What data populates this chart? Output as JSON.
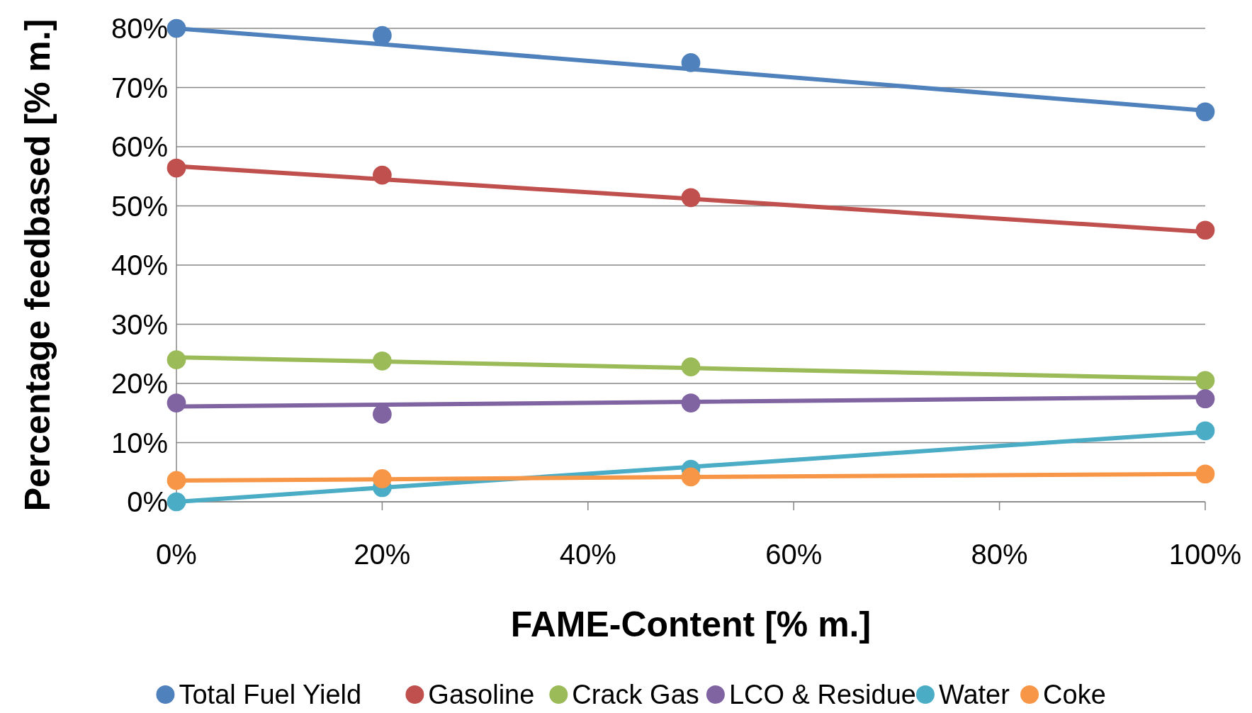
{
  "chart_data": {
    "type": "scatter",
    "xlabel": "FAME-Content [% m.]",
    "ylabel": "Percentage feedbased [% m.]",
    "xlim": [
      0,
      100
    ],
    "ylim": [
      0,
      80
    ],
    "xticks": [
      {
        "value": 0,
        "label": "0%"
      },
      {
        "value": 20,
        "label": "20%"
      },
      {
        "value": 40,
        "label": "40%"
      },
      {
        "value": 60,
        "label": "60%"
      },
      {
        "value": 80,
        "label": "80%"
      },
      {
        "value": 100,
        "label": "100%"
      }
    ],
    "yticks": [
      {
        "value": 0,
        "label": "0%"
      },
      {
        "value": 10,
        "label": "10%"
      },
      {
        "value": 20,
        "label": "20%"
      },
      {
        "value": 30,
        "label": "30%"
      },
      {
        "value": 40,
        "label": "40%"
      },
      {
        "value": 50,
        "label": "50%"
      },
      {
        "value": 60,
        "label": "60%"
      },
      {
        "value": 70,
        "label": "70%"
      },
      {
        "value": 80,
        "label": "80%"
      }
    ],
    "grid": "y",
    "legend": "bottom",
    "marker": "circle",
    "x": [
      0,
      20,
      50,
      100
    ],
    "series": [
      {
        "name": "Total Fuel Yield",
        "color": "#4f81bd",
        "values": [
          80.0,
          78.8,
          74.2,
          65.9
        ]
      },
      {
        "name": "Gasoline",
        "color": "#c0504d",
        "values": [
          56.4,
          55.2,
          51.4,
          45.9
        ]
      },
      {
        "name": "Crack Gas",
        "color": "#9bbb59",
        "values": [
          24.0,
          23.8,
          22.8,
          20.5
        ]
      },
      {
        "name": "LCO & Residue",
        "color": "#8064a2",
        "values": [
          16.7,
          14.8,
          16.7,
          17.4
        ]
      },
      {
        "name": "Water",
        "color": "#4bacc6",
        "values": [
          0.0,
          2.4,
          5.5,
          12.0
        ]
      },
      {
        "name": "Coke",
        "color": "#f79646",
        "values": [
          3.6,
          3.9,
          4.2,
          4.7
        ]
      },
      {
        "type": "line",
        "marker": "none",
        "color": "#4f81bd",
        "values": [
          80.0,
          77.3,
          73.1,
          66.1
        ]
      },
      {
        "type": "line",
        "marker": "none",
        "color": "#c0504d",
        "values": [
          56.7,
          54.5,
          51.2,
          45.6
        ]
      },
      {
        "type": "line",
        "marker": "none",
        "color": "#9bbb59",
        "values": [
          24.4,
          23.7,
          22.6,
          20.8
        ]
      },
      {
        "type": "line",
        "marker": "none",
        "color": "#8064a2",
        "values": [
          16.1,
          16.4,
          16.9,
          17.7
        ]
      },
      {
        "type": "line",
        "marker": "none",
        "color": "#4bacc6",
        "values": [
          0.0,
          2.4,
          5.9,
          11.8
        ]
      },
      {
        "type": "line",
        "marker": "none",
        "color": "#f79646",
        "values": [
          3.6,
          3.8,
          4.2,
          4.7
        ]
      }
    ]
  }
}
